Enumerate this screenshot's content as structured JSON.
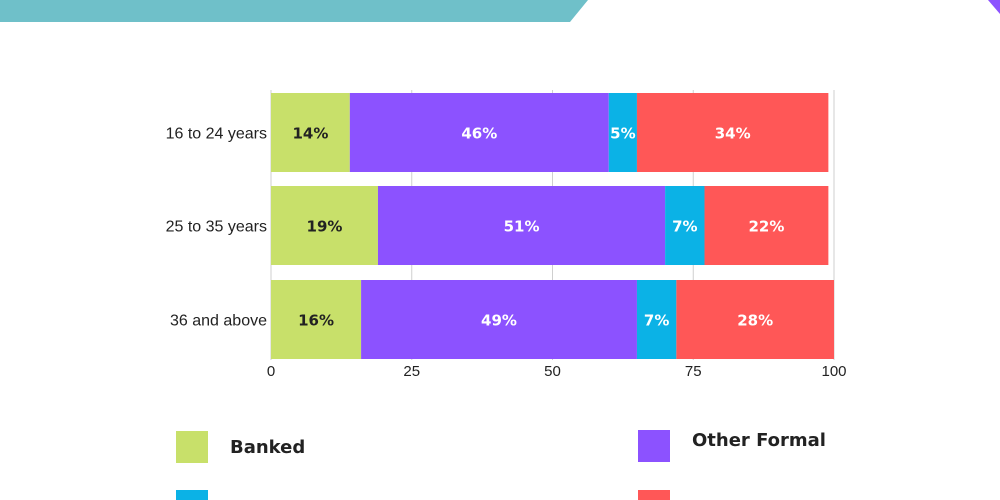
{
  "chart_data": {
    "type": "bar",
    "orientation": "horizontal",
    "stacked": true,
    "categories": [
      "16 to 24 years",
      "25 to 35 years",
      "36 and above"
    ],
    "series": [
      {
        "name": "Banked",
        "color": "#c8e06a",
        "label_color": "#222222",
        "values": [
          14,
          19,
          16
        ]
      },
      {
        "name": "Other Formal",
        "color": "#8c52ff",
        "label_color": "#ffffff",
        "values": [
          46,
          51,
          49
        ]
      },
      {
        "name": "",
        "color": "#0bb2e6",
        "label_color": "#ffffff",
        "values": [
          5,
          7,
          7
        ]
      },
      {
        "name": "",
        "color": "#ff5757",
        "label_color": "#ffffff",
        "values": [
          34,
          22,
          28
        ]
      }
    ],
    "xlim": [
      0,
      100
    ],
    "xticks": [
      0,
      25,
      50,
      75,
      100
    ],
    "grid": true,
    "legend_position": "bottom"
  },
  "decor": {
    "banner_color": "#6fc0c9",
    "corner_color": "#8c52ff"
  }
}
